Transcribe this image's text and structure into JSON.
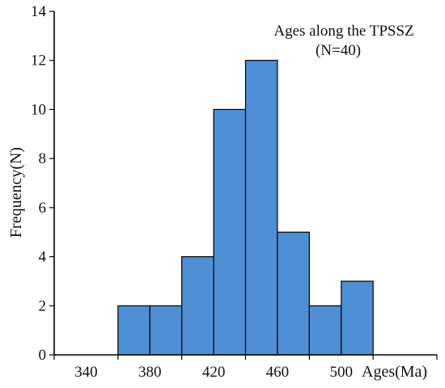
{
  "chart_data": {
    "type": "bar",
    "subtype": "histogram",
    "bins": [
      {
        "start": 360,
        "end": 380,
        "value": 2
      },
      {
        "start": 380,
        "end": 400,
        "value": 2
      },
      {
        "start": 400,
        "end": 420,
        "value": 4
      },
      {
        "start": 420,
        "end": 440,
        "value": 10
      },
      {
        "start": 440,
        "end": 460,
        "value": 12
      },
      {
        "start": 460,
        "end": 480,
        "value": 5
      },
      {
        "start": 480,
        "end": 500,
        "value": 2
      },
      {
        "start": 500,
        "end": 520,
        "value": 3
      }
    ],
    "xlim": [
      320,
      560
    ],
    "ylim": [
      0,
      14
    ],
    "x_ticks": [
      340,
      380,
      420,
      460,
      500
    ],
    "x_tick_labels": [
      "340",
      "380",
      "420",
      "460",
      "500"
    ],
    "x_minor_ticks": [
      320,
      360,
      400,
      440,
      480,
      520,
      560
    ],
    "y_ticks": [
      0,
      2,
      4,
      6,
      8,
      10,
      12,
      14
    ],
    "y_tick_labels": [
      "0",
      "2",
      "4",
      "6",
      "8",
      "10",
      "12",
      "14"
    ],
    "xlabel": "Ages(Ma)",
    "ylabel": "Frequency(N)",
    "annotation": {
      "line1": "Ages along the TPSSZ",
      "line2": "(N=40)"
    },
    "bar_color": "#4f8fd4",
    "edge_color": "#000000",
    "grid": false
  }
}
